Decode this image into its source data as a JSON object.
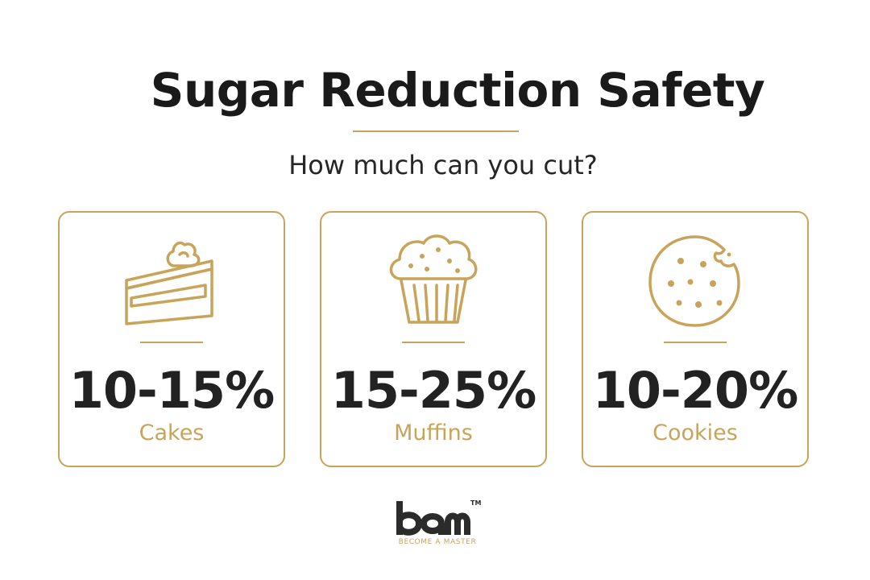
{
  "header": {
    "title": "Sugar Reduction Safety",
    "subtitle": "How much can you cut?"
  },
  "colors": {
    "accent": "#c8a45a",
    "text": "#1e1e1e",
    "background": "#ffffff"
  },
  "cards": [
    {
      "icon": "cake-slice-icon",
      "value": "10-15%",
      "label": "Cakes"
    },
    {
      "icon": "muffin-icon",
      "value": "15-25%",
      "label": "Muffins"
    },
    {
      "icon": "cookie-icon",
      "value": "10-20%",
      "label": "Cookies"
    }
  ],
  "logo": {
    "mark": "bam",
    "trademark": "TM",
    "tagline": "BECOME A MASTER"
  }
}
